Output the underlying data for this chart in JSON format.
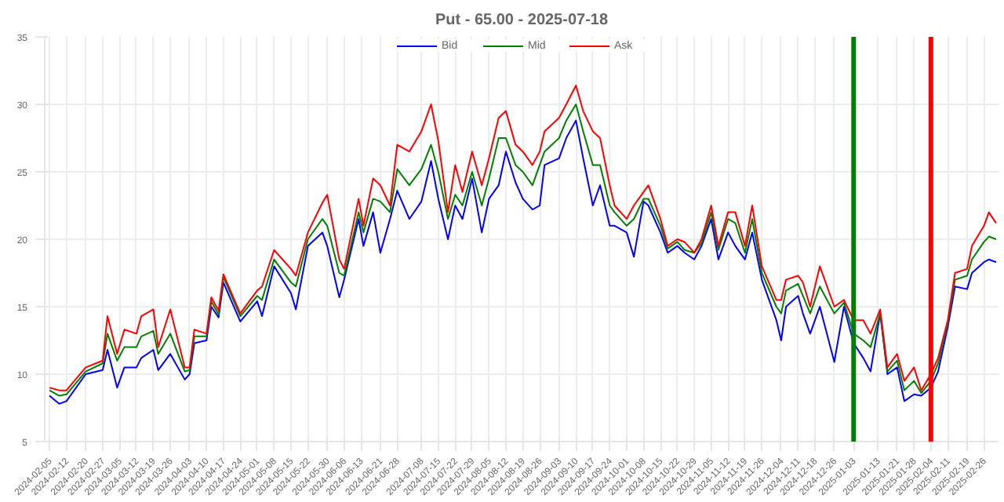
{
  "chart_data": {
    "type": "line",
    "title": "Put - 65.00 - 2025-07-18",
    "x": [
      "2024-02-05",
      "2024-02-09",
      "2024-02-12",
      "2024-02-20",
      "2024-02-27",
      "2024-02-29",
      "2024-03-04",
      "2024-03-07",
      "2024-03-12",
      "2024-03-14",
      "2024-03-19",
      "2024-03-21",
      "2024-03-26",
      "2024-04-01",
      "2024-04-03",
      "2024-04-05",
      "2024-04-10",
      "2024-04-12",
      "2024-04-15",
      "2024-04-17",
      "2024-04-24",
      "2024-05-01",
      "2024-05-03",
      "2024-05-08",
      "2024-05-15",
      "2024-05-17",
      "2024-05-22",
      "2024-05-28",
      "2024-05-30",
      "2024-06-04",
      "2024-06-06",
      "2024-06-12",
      "2024-06-14",
      "2024-06-18",
      "2024-06-21",
      "2024-06-25",
      "2024-06-28",
      "2024-07-03",
      "2024-07-08",
      "2024-07-12",
      "2024-07-15",
      "2024-07-19",
      "2024-07-22",
      "2024-07-25",
      "2024-07-29",
      "2024-08-02",
      "2024-08-05",
      "2024-08-09",
      "2024-08-12",
      "2024-08-16",
      "2024-08-19",
      "2024-08-23",
      "2024-08-26",
      "2024-08-28",
      "2024-09-03",
      "2024-09-06",
      "2024-09-10",
      "2024-09-13",
      "2024-09-17",
      "2024-09-20",
      "2024-09-24",
      "2024-09-26",
      "2024-10-01",
      "2024-10-04",
      "2024-10-08",
      "2024-10-10",
      "2024-10-15",
      "2024-10-18",
      "2024-10-22",
      "2024-10-25",
      "2024-10-29",
      "2024-11-01",
      "2024-11-05",
      "2024-11-08",
      "2024-11-12",
      "2024-11-15",
      "2024-11-19",
      "2024-11-22",
      "2024-11-26",
      "2024-12-02",
      "2024-12-04",
      "2024-12-06",
      "2024-12-11",
      "2024-12-13",
      "2024-12-16",
      "2024-12-20",
      "2024-12-26",
      "2024-12-30",
      "2025-01-03",
      "2025-01-07",
      "2025-01-10",
      "2025-01-14",
      "2025-01-17",
      "2025-01-21",
      "2025-01-24",
      "2025-01-28",
      "2025-01-31",
      "2025-02-04",
      "2025-02-07",
      "2025-02-11",
      "2025-02-14",
      "2025-02-19",
      "2025-02-21",
      "2025-02-26",
      "2025-02-28",
      "2025-03-03"
    ],
    "series": [
      {
        "name": "Bid",
        "color": "#0000ff",
        "values": [
          8.4,
          7.8,
          8.0,
          10.0,
          10.3,
          11.8,
          9.0,
          10.5,
          10.5,
          11.2,
          11.8,
          10.3,
          11.5,
          9.6,
          10.0,
          12.3,
          12.5,
          15.0,
          14.2,
          16.8,
          13.9,
          15.4,
          14.3,
          18.0,
          16.0,
          14.8,
          19.5,
          20.5,
          19.5,
          15.7,
          17.0,
          21.5,
          19.5,
          22.0,
          19.0,
          21.5,
          23.6,
          21.5,
          22.8,
          25.8,
          23.0,
          20.0,
          22.5,
          21.5,
          24.5,
          20.5,
          23.0,
          24.0,
          26.5,
          24.2,
          23.0,
          22.2,
          22.5,
          25.5,
          26.0,
          27.5,
          28.8,
          26.0,
          22.5,
          24.0,
          21.0,
          21.0,
          20.5,
          18.7,
          22.8,
          22.5,
          20.5,
          19.0,
          19.5,
          19.0,
          18.5,
          19.5,
          21.5,
          18.5,
          20.5,
          19.5,
          18.5,
          20.5,
          17.0,
          14.0,
          12.5,
          15.0,
          15.8,
          14.5,
          13.0,
          15.0,
          10.9,
          15.0,
          12.3,
          11.2,
          10.2,
          14.5,
          10.0,
          10.5,
          8.0,
          8.5,
          8.4,
          9.0,
          10.2,
          13.5,
          16.5,
          16.3,
          17.5,
          18.3,
          18.5,
          18.3
        ]
      },
      {
        "name": "Mid",
        "color": "#008000",
        "values": [
          8.8,
          8.4,
          8.5,
          10.2,
          10.8,
          13.0,
          11.0,
          12.0,
          12.0,
          12.8,
          13.2,
          11.5,
          13.0,
          10.2,
          10.3,
          12.8,
          12.8,
          15.4,
          14.4,
          17.2,
          14.3,
          15.8,
          15.5,
          18.5,
          16.8,
          16.5,
          20.0,
          21.5,
          21.0,
          17.5,
          17.3,
          22.0,
          20.5,
          23.0,
          22.8,
          22.0,
          25.2,
          24.0,
          25.2,
          27.0,
          25.0,
          21.5,
          23.3,
          22.5,
          25.0,
          22.5,
          24.5,
          27.5,
          27.5,
          25.5,
          25.0,
          24.0,
          25.5,
          26.5,
          27.5,
          28.8,
          30.0,
          28.0,
          25.5,
          25.5,
          22.5,
          22.0,
          21.0,
          21.5,
          23.0,
          23.0,
          21.0,
          19.3,
          19.8,
          19.2,
          19.0,
          19.7,
          22.0,
          19.2,
          21.5,
          21.2,
          19.0,
          21.5,
          17.5,
          15.0,
          14.5,
          16.2,
          16.7,
          15.8,
          14.5,
          16.5,
          14.5,
          15.3,
          13.0,
          12.5,
          12.0,
          14.5,
          10.2,
          11.0,
          8.8,
          9.5,
          8.6,
          9.5,
          10.8,
          13.8,
          17.0,
          17.3,
          18.5,
          19.8,
          20.2,
          20.0
        ]
      },
      {
        "name": "Ask",
        "color": "#ff0000",
        "values": [
          9.0,
          8.8,
          8.8,
          10.5,
          11.0,
          14.3,
          11.5,
          13.3,
          13.0,
          14.3,
          14.8,
          12.0,
          14.8,
          10.5,
          10.5,
          13.3,
          13.0,
          15.7,
          14.7,
          17.4,
          14.5,
          16.2,
          16.5,
          19.2,
          17.8,
          17.3,
          20.5,
          22.7,
          23.3,
          18.5,
          17.8,
          23.0,
          21.0,
          24.5,
          24.0,
          22.5,
          27.0,
          26.5,
          28.0,
          30.0,
          27.3,
          22.0,
          25.5,
          23.5,
          26.5,
          24.0,
          26.0,
          29.0,
          29.5,
          27.0,
          26.5,
          25.5,
          26.5,
          28.0,
          29.0,
          30.0,
          31.4,
          29.5,
          28.0,
          27.5,
          24.0,
          22.5,
          21.5,
          22.5,
          23.5,
          24.0,
          21.5,
          19.5,
          20.0,
          19.8,
          19.0,
          20.0,
          22.5,
          19.5,
          22.0,
          22.0,
          19.5,
          22.5,
          18.0,
          15.5,
          15.5,
          17.0,
          17.3,
          16.8,
          15.0,
          18.0,
          15.0,
          15.5,
          14.0,
          14.0,
          13.0,
          14.8,
          10.5,
          11.5,
          9.5,
          10.5,
          8.8,
          10.0,
          11.2,
          14.0,
          17.5,
          17.8,
          19.5,
          21.0,
          22.0,
          21.2
        ]
      }
    ],
    "xlim": [
      "2024-02-03",
      "2025-03-04"
    ],
    "xticks": [
      {
        "value": "2024-02-05",
        "label": "2024-02-05"
      },
      {
        "value": "2024-02-12",
        "label": "2024-02-12"
      },
      {
        "value": "2024-02-20",
        "label": "2024-02-20"
      },
      {
        "value": "2024-02-27",
        "label": "2024-02-27"
      },
      {
        "value": "2024-03-05",
        "label": "2024-03-05"
      },
      {
        "value": "2024-03-12",
        "label": "2024-03-12"
      },
      {
        "value": "2024-03-19",
        "label": "2024-03-19"
      },
      {
        "value": "2024-03-26",
        "label": "2024-03-26"
      },
      {
        "value": "2024-04-03",
        "label": "2024-04-03"
      },
      {
        "value": "2024-04-10",
        "label": "2024-04-10"
      },
      {
        "value": "2024-04-17",
        "label": "2024-04-17"
      },
      {
        "value": "2024-04-24",
        "label": "2024-04-24"
      },
      {
        "value": "2024-05-01",
        "label": "2024-05-01"
      },
      {
        "value": "2024-05-08",
        "label": "2024-05-08"
      },
      {
        "value": "2024-05-15",
        "label": "2024-05-15"
      },
      {
        "value": "2024-05-22",
        "label": "2024-05-22"
      },
      {
        "value": "2024-05-30",
        "label": "2024-05-30"
      },
      {
        "value": "2024-06-06",
        "label": "2024-06-06"
      },
      {
        "value": "2024-06-13",
        "label": "2024-06-13"
      },
      {
        "value": "2024-06-21",
        "label": "2024-06-21"
      },
      {
        "value": "2024-06-28",
        "label": "2024-06-28"
      },
      {
        "value": "2024-07-08",
        "label": "2024-07-08"
      },
      {
        "value": "2024-07-15",
        "label": "2024-07-15"
      },
      {
        "value": "2024-07-22",
        "label": "2024-07-22"
      },
      {
        "value": "2024-07-29",
        "label": "2024-07-29"
      },
      {
        "value": "2024-08-05",
        "label": "2024-08-05"
      },
      {
        "value": "2024-08-12",
        "label": "2024-08-12"
      },
      {
        "value": "2024-08-19",
        "label": "2024-08-19"
      },
      {
        "value": "2024-08-26",
        "label": "2024-08-26"
      },
      {
        "value": "2024-09-03",
        "label": "2024-09-03"
      },
      {
        "value": "2024-09-10",
        "label": "2024-09-10"
      },
      {
        "value": "2024-09-17",
        "label": "2024-09-17"
      },
      {
        "value": "2024-09-24",
        "label": "2024-09-24"
      },
      {
        "value": "2024-10-01",
        "label": "2024-10-01"
      },
      {
        "value": "2024-10-08",
        "label": "2024-10-08"
      },
      {
        "value": "2024-10-15",
        "label": "2024-10-15"
      },
      {
        "value": "2024-10-22",
        "label": "2024-10-22"
      },
      {
        "value": "2024-10-29",
        "label": "2024-10-29"
      },
      {
        "value": "2024-11-05",
        "label": "2024-11-05"
      },
      {
        "value": "2024-11-12",
        "label": "2024-11-12"
      },
      {
        "value": "2024-11-19",
        "label": "2024-11-19"
      },
      {
        "value": "2024-11-26",
        "label": "2024-11-26"
      },
      {
        "value": "2024-12-04",
        "label": "2024-12-04"
      },
      {
        "value": "2024-12-11",
        "label": "2024-12-11"
      },
      {
        "value": "2024-12-18",
        "label": "2024-12-18"
      },
      {
        "value": "2024-12-26",
        "label": "2024-12-26"
      },
      {
        "value": "2025-01-03",
        "label": "2025-01-03"
      },
      {
        "value": "2025-01-13",
        "label": "2025-01-13"
      },
      {
        "value": "2025-01-21",
        "label": "2025-01-21"
      },
      {
        "value": "2025-01-28",
        "label": "2025-01-28"
      },
      {
        "value": "2025-02-04",
        "label": "2025-02-04"
      },
      {
        "value": "2025-02-11",
        "label": "2025-02-11"
      },
      {
        "value": "2025-02-19",
        "label": "2025-02-19"
      },
      {
        "value": "2025-02-26",
        "label": "2025-02-26"
      }
    ],
    "ylim": [
      5,
      35
    ],
    "yticks": [
      5,
      10,
      15,
      20,
      25,
      30,
      35
    ],
    "grid": true,
    "legend": "top",
    "marker": "none",
    "line_style": "solid",
    "ref_lines": [
      {
        "axis": "x",
        "value": "2025-01-03",
        "color": "#008000"
      },
      {
        "axis": "x",
        "value": "2025-02-04",
        "color": "#ff0000"
      }
    ]
  }
}
